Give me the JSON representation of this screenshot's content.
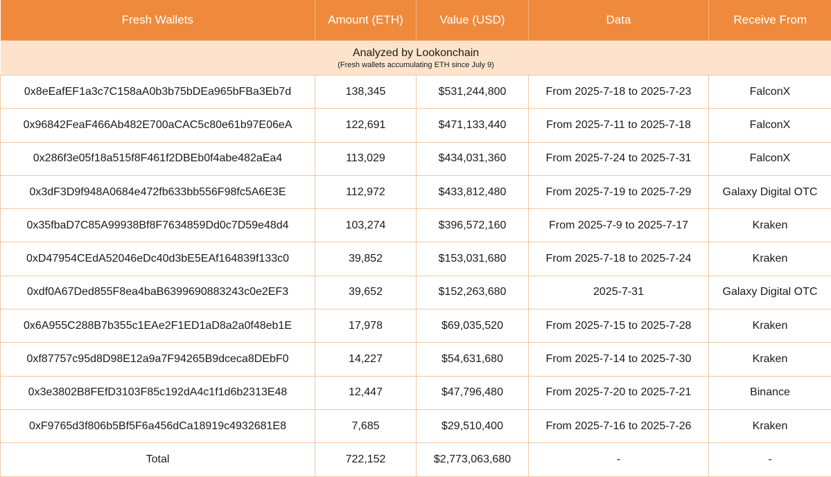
{
  "header": {
    "columns": [
      "Fresh Wallets",
      "Amount (ETH)",
      "Value (USD)",
      "Data",
      "Receive From"
    ]
  },
  "banner": {
    "title": "Analyzed by Lookonchain",
    "subtitle": "(Fresh wallets accumulating ETH since July 9)"
  },
  "rows": [
    {
      "wallet": "0x8eEafEF1a3c7C158aA0b3b75bDEa965bFBa3Eb7d",
      "amount": "138,345",
      "value": "$531,244,800",
      "data": "From 2025-7-18 to 2025-7-23",
      "from": "FalconX"
    },
    {
      "wallet": "0x96842FeaF466Ab482E700aCAC5c80e61b97E06eA",
      "amount": "122,691",
      "value": "$471,133,440",
      "data": "From 2025-7-11 to 2025-7-18",
      "from": "FalconX"
    },
    {
      "wallet": "0x286f3e05f18a515f8F461f2DBEb0f4abe482aEa4",
      "amount": "113,029",
      "value": "$434,031,360",
      "data": "From 2025-7-24 to 2025-7-31",
      "from": "FalconX"
    },
    {
      "wallet": "0x3dF3D9f948A0684e472fb633bb556F98fc5A6E3E",
      "amount": "112,972",
      "value": "$433,812,480",
      "data": "From 2025-7-19 to 2025-7-29",
      "from": "Galaxy Digital OTC"
    },
    {
      "wallet": "0x35fbaD7C85A99938Bf8F7634859Dd0c7D59e48d4",
      "amount": "103,274",
      "value": "$396,572,160",
      "data": "From 2025-7-9 to 2025-7-17",
      "from": "Kraken"
    },
    {
      "wallet": "0xD47954CEdA52046eDc40d3bE5EAf164839f133c0",
      "amount": "39,852",
      "value": "$153,031,680",
      "data": "From 2025-7-18 to 2025-7-24",
      "from": "Kraken"
    },
    {
      "wallet": "0xdf0A67Ded855F8ea4baB6399690883243c0e2EF3",
      "amount": "39,652",
      "value": "$152,263,680",
      "data": "2025-7-31",
      "from": "Galaxy Digital OTC"
    },
    {
      "wallet": "0x6A955C288B7b355c1EAe2F1ED1aD8a2a0f48eb1E",
      "amount": "17,978",
      "value": "$69,035,520",
      "data": "From 2025-7-15 to 2025-7-28",
      "from": "Kraken"
    },
    {
      "wallet": "0xf87757c95d8D98E12a9a7F94265B9dceca8DEbF0",
      "amount": "14,227",
      "value": "$54,631,680",
      "data": "From 2025-7-14 to 2025-7-30",
      "from": "Kraken"
    },
    {
      "wallet": "0x3e3802B8FEfD3103F85c192dA4c1f1d6b2313E48",
      "amount": "12,447",
      "value": "$47,796,480",
      "data": "From 2025-7-20 to 2025-7-21",
      "from": "Binance"
    },
    {
      "wallet": "0xF9765d3f806b5Bf5F6a456dCa18919c4932681E8",
      "amount": "7,685",
      "value": "$29,510,400",
      "data": "From 2025-7-16 to 2025-7-26",
      "from": "Kraken"
    }
  ],
  "total": {
    "label": "Total",
    "amount": "722,152",
    "value": "$2,773,063,680",
    "data": "-",
    "from": "-"
  },
  "colors": {
    "header_bg": "#ef8a3c",
    "banner_bg": "#fde3cc",
    "grid": "#f2c6a2"
  }
}
